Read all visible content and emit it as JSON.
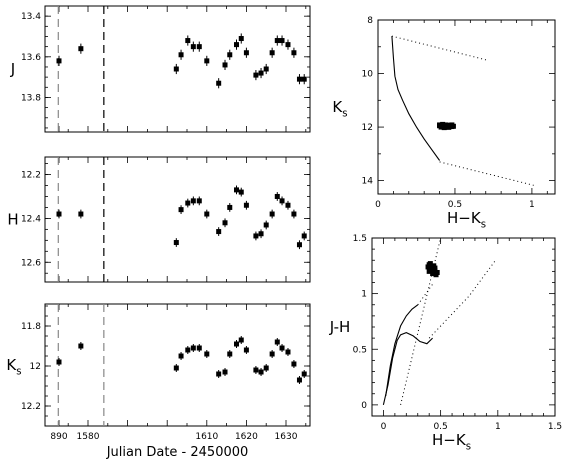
{
  "chart_data": [
    {
      "id": "lc_J",
      "type": "scatter",
      "ylabel": "J",
      "xlabel": "",
      "ylim": [
        13.35,
        13.97
      ],
      "y_inverted": true,
      "x_axis": "broken",
      "x_ticks": [],
      "y_ticks": [
        13.4,
        13.6,
        13.8
      ],
      "y_ticklabels": [
        "13.4",
        "13.6",
        "13.8"
      ],
      "errorbar": 0.025,
      "series": [
        {
          "x": [
            890,
            1578.2,
            1602.3,
            1603.5,
            1605.2,
            1606.6,
            1608.1,
            1610,
            1613,
            1614.6,
            1615.8,
            1617.5,
            1618.7,
            1620,
            1622.4,
            1623.7,
            1625,
            1626.5,
            1627.8,
            1629,
            1630.5,
            1632,
            1633.4,
            1634.6
          ],
          "y": [
            13.62,
            13.56,
            13.66,
            13.59,
            13.52,
            13.55,
            13.55,
            13.62,
            13.73,
            13.64,
            13.59,
            13.54,
            13.51,
            13.58,
            13.69,
            13.68,
            13.66,
            13.58,
            13.52,
            13.52,
            13.54,
            13.58,
            13.71,
            13.71
          ]
        }
      ],
      "dashed_lines": [
        {
          "x": 1572.5,
          "color": "#888888"
        },
        {
          "x": 1584.0,
          "color": "#000000"
        }
      ]
    },
    {
      "id": "lc_H",
      "type": "scatter",
      "ylabel": "H",
      "xlabel": "",
      "ylim": [
        12.12,
        12.69
      ],
      "y_inverted": true,
      "x_axis": "broken",
      "x_ticks": [],
      "y_ticks": [
        12.2,
        12.4,
        12.6
      ],
      "y_ticklabels": [
        "12.2",
        "12.4",
        "12.6"
      ],
      "errorbar": 0.02,
      "series": [
        {
          "x": [
            890,
            1578.2,
            1602.3,
            1603.5,
            1605.2,
            1606.6,
            1608.1,
            1610,
            1613,
            1614.6,
            1615.8,
            1617.5,
            1618.7,
            1620,
            1622.4,
            1623.7,
            1625,
            1626.5,
            1627.8,
            1629,
            1630.5,
            1632,
            1633.4,
            1634.6
          ],
          "y": [
            12.38,
            12.38,
            12.51,
            12.36,
            12.33,
            12.32,
            12.32,
            12.38,
            12.46,
            12.42,
            12.35,
            12.27,
            12.28,
            12.34,
            12.48,
            12.47,
            12.43,
            12.38,
            12.3,
            12.32,
            12.34,
            12.38,
            12.52,
            12.48
          ]
        }
      ],
      "dashed_lines": [
        {
          "x": 1572.5,
          "color": "#888888"
        },
        {
          "x": 1584.0,
          "color": "#000000"
        }
      ]
    },
    {
      "id": "lc_Ks",
      "type": "scatter",
      "ylabel": "Ks",
      "xlabel": "Julian Date - 2450000",
      "ylim": [
        11.69,
        12.3
      ],
      "y_inverted": true,
      "x_axis": "broken",
      "x_ticks": [
        890,
        1580,
        1610,
        1620,
        1630
      ],
      "x_ticklabels": [
        "890",
        "1580",
        "1610",
        "1620",
        "1630"
      ],
      "y_ticks": [
        11.8,
        12,
        12.2
      ],
      "y_ticklabels": [
        "11.8",
        "12",
        "12.2"
      ],
      "errorbar": 0.02,
      "series": [
        {
          "x": [
            890,
            1578.2,
            1602.3,
            1603.5,
            1605.2,
            1606.6,
            1608.1,
            1610,
            1613,
            1614.6,
            1615.8,
            1617.5,
            1618.7,
            1620,
            1622.4,
            1623.7,
            1625,
            1626.5,
            1627.8,
            1629,
            1630.5,
            1632,
            1633.4,
            1634.6
          ],
          "y": [
            11.98,
            11.9,
            12.01,
            11.95,
            11.92,
            11.91,
            11.91,
            11.94,
            12.04,
            12.03,
            11.94,
            11.89,
            11.87,
            11.92,
            12.02,
            12.03,
            12.01,
            11.94,
            11.88,
            11.91,
            11.93,
            11.99,
            12.07,
            12.04
          ]
        }
      ],
      "dashed_lines": [
        {
          "x": 1572.5,
          "color": "#888888"
        },
        {
          "x": 1584.0,
          "color": "#888888"
        }
      ]
    },
    {
      "id": "cmd",
      "type": "scatter",
      "ylabel": "Ks",
      "xlabel": "H-Ks",
      "xlim": [
        0,
        1.15
      ],
      "ylim": [
        8,
        14.5
      ],
      "y_inverted": true,
      "x_ticks": [
        0,
        0.5,
        1
      ],
      "x_ticklabels": [
        "0",
        "0.5",
        "1"
      ],
      "y_ticks": [
        8,
        10,
        12,
        14
      ],
      "y_ticklabels": [
        "8",
        "10",
        "12",
        "14"
      ],
      "series": [
        {
          "name": "",
          "x": [
            0.4,
            0.42,
            0.44,
            0.45,
            0.47,
            0.48,
            0.41,
            0.43,
            0.46,
            0.49,
            0.4,
            0.44,
            0.45,
            0.47,
            0.42,
            0.48,
            0.43,
            0.46
          ],
          "y": [
            11.95,
            11.9,
            11.92,
            11.97,
            11.93,
            11.98,
            12.0,
            12.02,
            11.96,
            11.97,
            11.92,
            12.0,
            11.94,
            11.95,
            11.98,
            11.92,
            11.94,
            12.01
          ]
        }
      ],
      "lines": [
        {
          "style": "solid",
          "x": [
            0.09,
            0.1,
            0.11,
            0.13,
            0.16,
            0.2,
            0.25,
            0.3,
            0.35,
            0.4
          ],
          "y": [
            8.6,
            9.4,
            10.1,
            10.6,
            11.0,
            11.5,
            12.0,
            12.45,
            12.85,
            13.25
          ]
        },
        {
          "style": "dotted",
          "x": [
            0.09,
            0.71
          ],
          "y": [
            8.6,
            9.5
          ]
        },
        {
          "style": "dotted",
          "x": [
            0.4,
            1.03
          ],
          "y": [
            13.3,
            14.2
          ]
        }
      ]
    },
    {
      "id": "ccd",
      "type": "scatter",
      "ylabel": "J-H",
      "xlabel": "H-Ks",
      "xlim": [
        -0.1,
        1.5
      ],
      "ylim": [
        -0.1,
        1.5
      ],
      "x_ticks": [
        0,
        0.5,
        1,
        1.5
      ],
      "x_ticklabels": [
        "0",
        "0.5",
        "1",
        "1.5"
      ],
      "y_ticks": [
        0,
        0.5,
        1,
        1.5
      ],
      "y_ticklabels": [
        "0",
        "0.5",
        "1",
        "1.5"
      ],
      "series": [
        {
          "name": "",
          "x": [
            0.39,
            0.4,
            0.41,
            0.42,
            0.43,
            0.44,
            0.45,
            0.46,
            0.4,
            0.42,
            0.44,
            0.45,
            0.47
          ],
          "y": [
            1.24,
            1.2,
            1.27,
            1.22,
            1.18,
            1.25,
            1.21,
            1.17,
            1.26,
            1.24,
            1.2,
            1.23,
            1.19
          ]
        }
      ],
      "lines": [
        {
          "style": "solid",
          "x": [
            0.0,
            0.04,
            0.08,
            0.12,
            0.15,
            0.2,
            0.26,
            0.32,
            0.38,
            0.43
          ],
          "y": [
            0.0,
            0.18,
            0.42,
            0.58,
            0.63,
            0.65,
            0.62,
            0.57,
            0.55,
            0.6
          ]
        },
        {
          "style": "solid",
          "x": [
            0.02,
            0.06,
            0.1,
            0.15,
            0.2,
            0.25,
            0.3
          ],
          "y": [
            0.08,
            0.35,
            0.55,
            0.71,
            0.8,
            0.86,
            0.9
          ]
        },
        {
          "style": "dotted",
          "x": [
            0.15,
            0.5
          ],
          "y": [
            0.0,
            1.5
          ]
        },
        {
          "style": "dotted",
          "x": [
            0.4,
            0.75,
            0.98
          ],
          "y": [
            0.6,
            0.98,
            1.3
          ]
        },
        {
          "style": "dotted",
          "x": [
            0.3,
            0.44
          ],
          "y": [
            0.9,
            1.1
          ]
        }
      ]
    }
  ]
}
